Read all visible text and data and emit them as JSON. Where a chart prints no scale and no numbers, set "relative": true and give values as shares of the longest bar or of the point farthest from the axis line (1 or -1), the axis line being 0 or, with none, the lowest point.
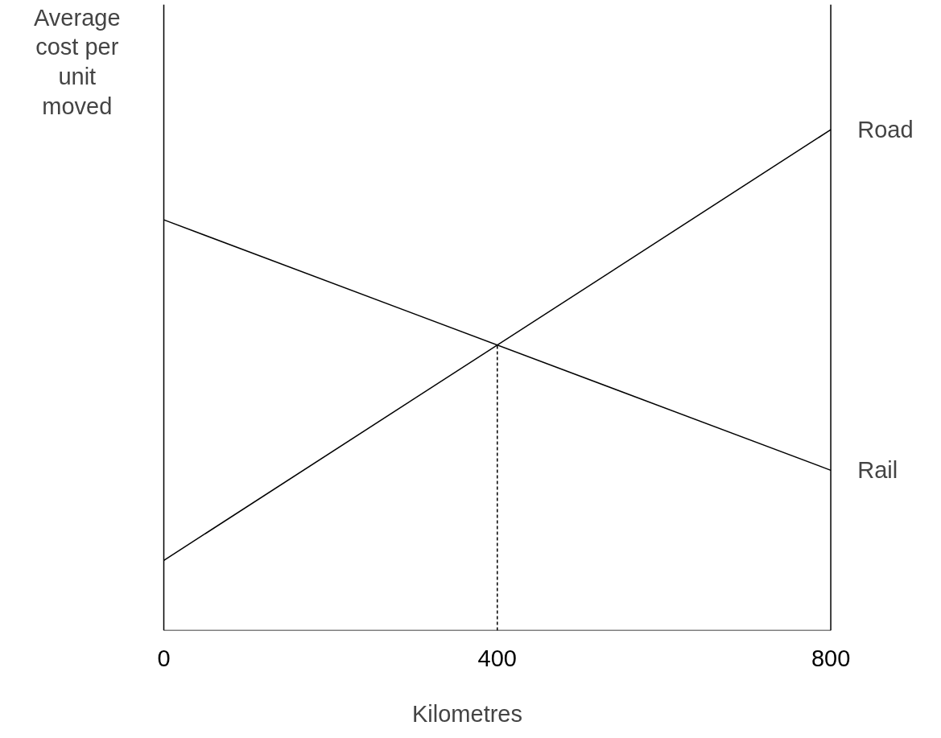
{
  "chart_data": {
    "type": "line",
    "relative": true,
    "xlabel": "Kilometres",
    "ylabel": "Average cost per unit moved",
    "xlim": [
      0,
      800
    ],
    "xticks": [
      0,
      400,
      800
    ],
    "grid": false,
    "legend": false,
    "marker": "none",
    "line_style": "solid",
    "series": [
      {
        "name": "Road",
        "color": "#000000",
        "x": [
          0,
          800
        ],
        "values": [
          0.14,
          1.0
        ]
      },
      {
        "name": "Rail",
        "color": "#000000",
        "x": [
          0,
          800
        ],
        "values": [
          0.82,
          0.32
        ]
      },
      {
        "color": "#000000",
        "x": [
          400,
          400
        ],
        "values": [
          0,
          0.57
        ],
        "line_style": "dashed"
      }
    ]
  }
}
